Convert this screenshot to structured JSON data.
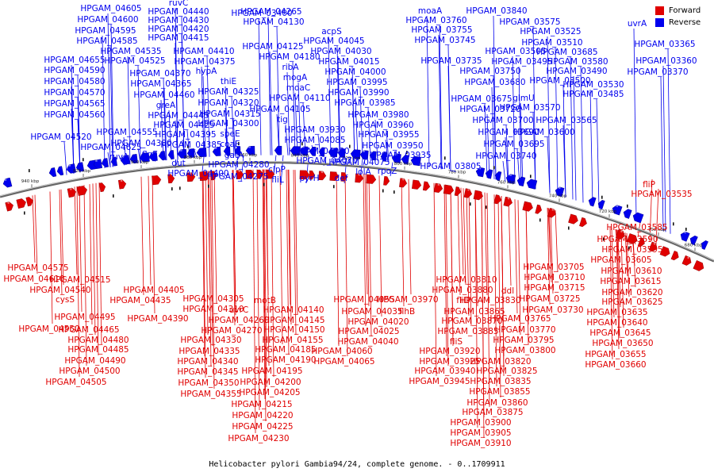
{
  "legend": {
    "forward_label": "Forward",
    "reverse_label": "Reverse",
    "forward_color": "#e00000",
    "reverse_color": "#0000ee"
  },
  "caption": "Helicobacter pylori Gambia94/24, complete genome. - 0..1709911",
  "axis_ticks": [
    "940 kbp",
    "920 kbp",
    "900 kbp",
    "880 kbp",
    "860 kbp",
    "840 kbp",
    "820 kbp",
    "800 kbp",
    "780 kbp",
    "760 kbp",
    "740 kbp",
    "720 kbp",
    "700 kbp",
    "680 kbp"
  ],
  "reverse_labels": [
    "HPGAM_04605",
    "HPGAM_04600",
    "HPGAM_04595",
    "HPGAM_04585",
    "HPGAM_04535",
    "HPGAM_04525",
    "HPGAM_04655",
    "HPGAM_04590",
    "HPGAM_04580",
    "HPGAM_04570",
    "HPGAM_04565",
    "HPGAM_04560",
    "HPGAM_04555",
    "HPGAM_04520",
    "HPGAM_04625",
    "ruvA",
    "ruvC",
    "HPGAM_04440",
    "HPGAM_04430",
    "HPGAM_04420",
    "HPGAM_04415",
    "HPGAM_04410",
    "HPGAM_04375",
    "HPGAM_04370",
    "hypA",
    "HPGAM_04365",
    "HPGAM_04460",
    "greA",
    "HPGAM_04445",
    "HPGAM_04425",
    "HPGAM_04395",
    "HPGAM_04385",
    "HPGAM_04380",
    "flgE",
    "dut",
    "HPGAM_04400",
    "thiE",
    "HPGAM_04325",
    "HPGAM_04320",
    "HPGAM_04315",
    "HPGAM_04300",
    "speE",
    "coaE",
    "gatA",
    "HPGAM_04280",
    "HPGAM_04275",
    "HPGAM_04265",
    "HPGAM_04130",
    "HPGAM_04125",
    "HPGAM_04180",
    "ribA",
    "mogA",
    "moaC",
    "HPGAM_04110",
    "HPGAM_04105",
    "tig",
    "clpP",
    "fliL",
    "acpS",
    "HPGAM_04045",
    "HPGAM_04030",
    "HPGAM_04015",
    "HPGAM_04000",
    "HPGAM_03995",
    "HPGAM_03990",
    "HPGAM_03985",
    "HPGAM_03980",
    "HPGAM_03960",
    "HPGAM_03955",
    "HPGAM_03950",
    "HPGAM_03935",
    "HPGAM_03930",
    "HPGAM_04085",
    "HPGAM_04080",
    "HPGAM_04070",
    "HPGAM_04075",
    "pyrH",
    "def",
    "lolA",
    "rpoZ",
    "moaA",
    "HPGAM_03760",
    "HPGAM_03755",
    "HPGAM_03745",
    "HPGAM_03735",
    "HPGAM_03750",
    "HPGAM_03680",
    "HPGAM_03675",
    "HPGAM_03720",
    "HPGAM_03700",
    "HPGAM_03690",
    "HPGAM_03695",
    "HPGAM_03740",
    "HPGAM_03805",
    "HPGAM_03840",
    "HPGAM_03575",
    "HPGAM_03525",
    "HPGAM_03510",
    "HPGAM_03505",
    "HPGAM_03685",
    "HPGAM_03495",
    "HPGAM_03580",
    "HPGAM_03490",
    "HPGAM_03500",
    "HPGAM_03530",
    "HPGAM_03485",
    "glmU",
    "HPGAM_03570",
    "HPGAM_03565",
    "HPGAM_03600",
    "uvrA",
    "HPGAM_03365",
    "HPGAM_03360",
    "HPGAM_03370",
    "HPGAM_03400"
  ],
  "forward_labels": [
    "HPGAM_04575",
    "HPGAM_04610",
    "HPGAM_04515",
    "HPGAM_04540",
    "cysS",
    "HPGAM_04550",
    "HPGAM_04405",
    "HPGAM_04435",
    "HPGAM_04495",
    "HPGAM_04465",
    "HPGAM_04390",
    "HPGAM_04485",
    "HPGAM_04480",
    "HPGAM_04490",
    "HPGAM_04500",
    "HPGAM_04505",
    "HPGAM_04305",
    "HPGAM_04310",
    "HPGAM_04330",
    "HPGAM_04335",
    "HPGAM_04340",
    "HPGAM_04345",
    "HPGAM_04350",
    "HPGAM_04355",
    "uvrC",
    "motB",
    "HPGAM_04260",
    "HPGAM_04270",
    "HPGAM_04140",
    "HPGAM_04145",
    "HPGAM_04150",
    "HPGAM_04155",
    "HPGAM_04185",
    "HPGAM_04190",
    "HPGAM_04195",
    "HPGAM_04200",
    "HPGAM_04205",
    "HPGAM_04215",
    "HPGAM_04220",
    "HPGAM_04225",
    "HPGAM_04230",
    "HPGAM_04055",
    "HPGAM_04035",
    "HPGAM_04020",
    "HPGAM_04025",
    "HPGAM_04040",
    "HPGAM_04060",
    "HPGAM_04065",
    "flhB",
    "HPGAM_03970",
    "HPGAM_03810",
    "HPGAM_03880",
    "fliD",
    "ddl",
    "HPGAM_03830",
    "HPGAM_03865",
    "HPGAM_03870",
    "HPGAM_03885",
    "fliS",
    "HPGAM_03920",
    "HPGAM_03925",
    "HPGAM_03940",
    "HPGAM_03945",
    "HPGAM_03820",
    "HPGAM_03825",
    "HPGAM_03835",
    "HPGAM_03855",
    "HPGAM_03860",
    "HPGAM_03875",
    "HPGAM_03900",
    "HPGAM_03905",
    "HPGAM_03910",
    "HPGAM_03765",
    "HPGAM_03770",
    "HPGAM_03795",
    "HPGAM_03800",
    "HPGAM_03705",
    "HPGAM_03710",
    "HPGAM_03715",
    "HPGAM_03725",
    "HPGAM_03730",
    "fliP",
    "HPGAM_03535",
    "HPGAM_03585",
    "HPGAM_03590",
    "HPGAM_03595",
    "HPGAM_03605",
    "HPGAM_03610",
    "HPGAM_03615",
    "HPGAM_03620",
    "HPGAM_03625",
    "HPGAM_03635",
    "HPGAM_03640",
    "HPGAM_03645",
    "HPGAM_03650",
    "HPGAM_03655",
    "HPGAM_03660"
  ]
}
